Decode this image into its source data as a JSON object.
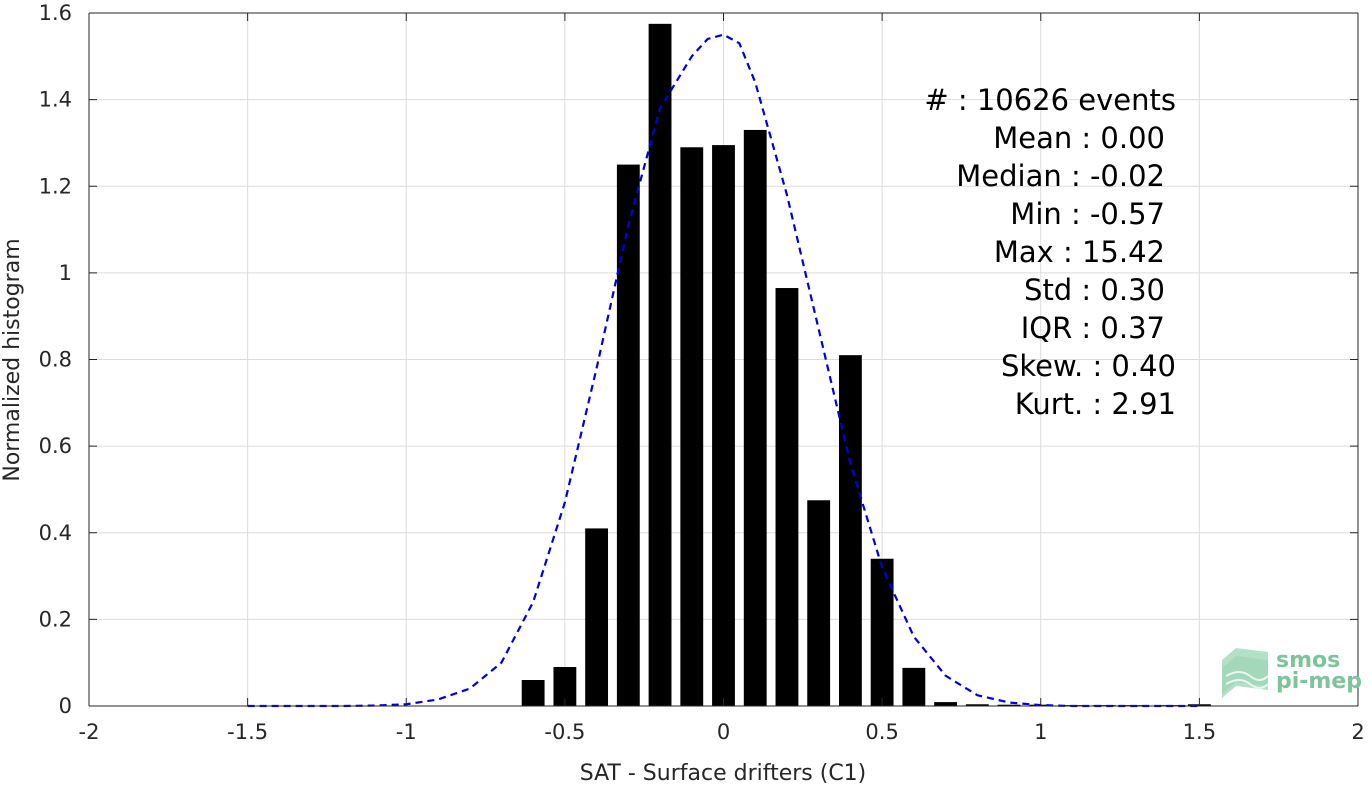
{
  "chart_data": {
    "type": "bar",
    "xlabel": "SAT - Surface drifters (C1)",
    "ylabel": "Normalized histogram",
    "xlim": [
      -2,
      2
    ],
    "ylim": [
      0,
      1.6
    ],
    "xticks": [
      -2,
      -1.5,
      -1,
      -0.5,
      0,
      0.5,
      1,
      1.5,
      2
    ],
    "xtick_labels": [
      "-2",
      "-1.5",
      "-1",
      "-0.5",
      "0",
      "0.5",
      "1",
      "1.5",
      "2"
    ],
    "yticks": [
      0,
      0.2,
      0.4,
      0.6,
      0.8,
      1,
      1.2,
      1.4,
      1.6
    ],
    "ytick_labels": [
      "0",
      "0.2",
      "0.4",
      "0.6",
      "0.8",
      "1",
      "1.2",
      "1.4",
      "1.6"
    ],
    "grid": true,
    "bar_color": "#000000",
    "curve_color": "#0000dd",
    "bins": [
      {
        "x": -0.6,
        "value": 0.06
      },
      {
        "x": -0.5,
        "value": 0.09
      },
      {
        "x": -0.4,
        "value": 0.41
      },
      {
        "x": -0.3,
        "value": 1.25
      },
      {
        "x": -0.2,
        "value": 1.575
      },
      {
        "x": -0.1,
        "value": 1.29
      },
      {
        "x": 0.0,
        "value": 1.295
      },
      {
        "x": 0.1,
        "value": 1.33
      },
      {
        "x": 0.2,
        "value": 0.965
      },
      {
        "x": 0.3,
        "value": 0.475
      },
      {
        "x": 0.4,
        "value": 0.81
      },
      {
        "x": 0.5,
        "value": 0.34
      },
      {
        "x": 0.6,
        "value": 0.088
      },
      {
        "x": 0.7,
        "value": 0.009
      },
      {
        "x": 0.8,
        "value": 0.004
      },
      {
        "x": 0.9,
        "value": 0.003
      },
      {
        "x": 1.0,
        "value": 0.003
      },
      {
        "x": 1.1,
        "value": 0.002
      },
      {
        "x": 1.2,
        "value": 0.002
      },
      {
        "x": 1.3,
        "value": 0.002
      },
      {
        "x": 1.4,
        "value": 0.002
      },
      {
        "x": 1.5,
        "value": 0.004
      }
    ],
    "fit_curve": {
      "style": "dashed",
      "x": [
        -1.5,
        -1.4,
        -1.3,
        -1.2,
        -1.1,
        -1.0,
        -0.9,
        -0.8,
        -0.7,
        -0.6,
        -0.5,
        -0.4,
        -0.3,
        -0.2,
        -0.1,
        -0.05,
        0.0,
        0.05,
        0.1,
        0.2,
        0.3,
        0.4,
        0.5,
        0.6,
        0.7,
        0.8,
        0.9,
        1.0,
        1.1,
        1.2,
        1.3,
        1.4,
        1.5
      ],
      "y": [
        0.0,
        0.0,
        0.0,
        0.0,
        0.001,
        0.004,
        0.015,
        0.04,
        0.1,
        0.24,
        0.47,
        0.78,
        1.11,
        1.38,
        1.5,
        1.54,
        1.55,
        1.53,
        1.44,
        1.18,
        0.87,
        0.56,
        0.32,
        0.16,
        0.07,
        0.025,
        0.008,
        0.002,
        0.0,
        0.0,
        0.0,
        0.0,
        0.0
      ]
    },
    "annotations": [
      "#  : 10626 events",
      "Mean : 0.00",
      "Median : -0.02",
      "Min : -0.57",
      "Max : 15.42",
      "Std : 0.30",
      "IQR : 0.37",
      "Skew. : 0.40",
      "Kurt. : 2.91"
    ]
  },
  "logo": {
    "line1": "smos",
    "line2": "pi-mep",
    "color": "#7dc49a"
  }
}
